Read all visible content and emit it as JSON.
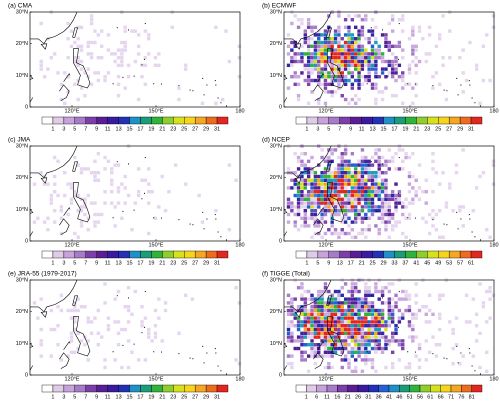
{
  "panels": [
    {
      "title": "(a) CMA",
      "colorbar_labels": [
        1,
        3,
        5,
        7,
        9,
        11,
        13,
        15,
        17,
        19,
        21,
        23,
        25,
        27,
        29,
        31
      ]
    },
    {
      "title": "(b) ECMWF",
      "colorbar_labels": [
        1,
        3,
        5,
        7,
        9,
        11,
        13,
        15,
        17,
        19,
        21,
        23,
        25,
        27,
        29,
        31
      ]
    },
    {
      "title": "(c) JMA",
      "colorbar_labels": [
        1,
        3,
        5,
        7,
        9,
        11,
        13,
        15,
        17,
        19,
        21,
        23,
        25,
        27,
        29,
        31
      ]
    },
    {
      "title": "(d) NCEP",
      "colorbar_labels": [
        1,
        5,
        9,
        13,
        17,
        21,
        25,
        29,
        33,
        37,
        41,
        45,
        49,
        53,
        57,
        61
      ]
    },
    {
      "title": "(e) JRA-55 (1979-2017)",
      "colorbar_labels": [
        1,
        3,
        5,
        7,
        9,
        11,
        13,
        15,
        17,
        19,
        21,
        23,
        25,
        27,
        29,
        31
      ]
    },
    {
      "title": "(f) TIGGE (Total)",
      "colorbar_labels": [
        1,
        6,
        11,
        16,
        21,
        26,
        31,
        36,
        41,
        46,
        51,
        56,
        61,
        66,
        71,
        76,
        81
      ]
    }
  ],
  "lat_ticks": [
    {
      "value": 0,
      "label": "0"
    },
    {
      "value": 10,
      "label": "10°N"
    },
    {
      "value": 20,
      "label": "20°N"
    },
    {
      "value": 30,
      "label": "30°N"
    }
  ],
  "lon_ticks": [
    {
      "value": 120,
      "label": "120°E"
    },
    {
      "value": 150,
      "label": "150°E"
    },
    {
      "value": 180,
      "label": "180"
    }
  ]
}
